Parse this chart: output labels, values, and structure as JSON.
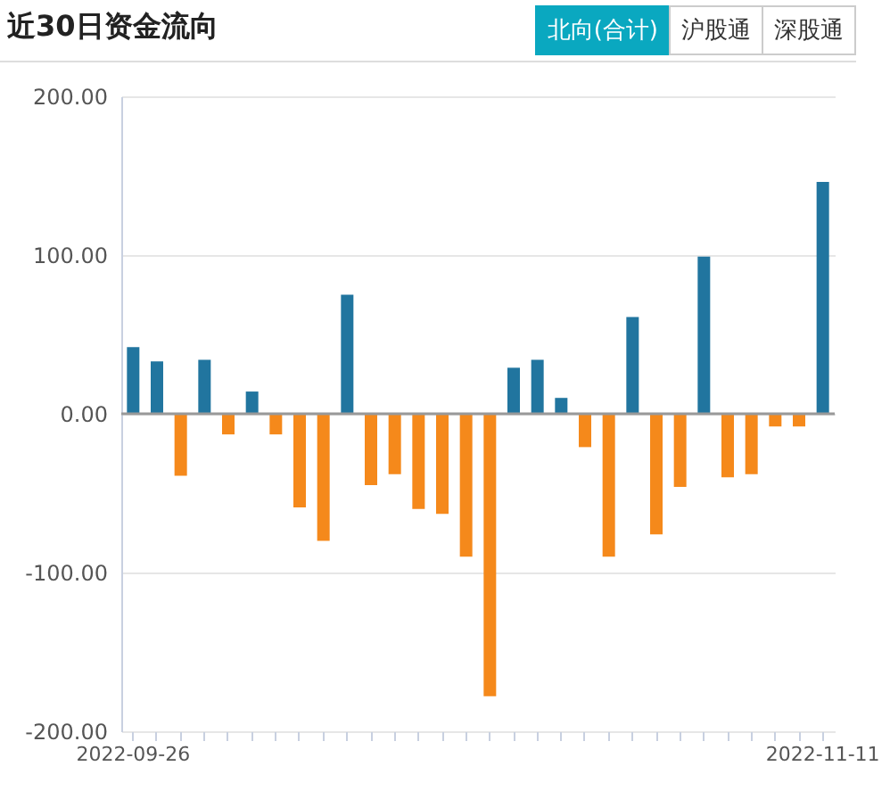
{
  "chart_data": {
    "type": "bar",
    "title": "近30日资金流向",
    "annotations": [
      "北向(合计)",
      "沪股通",
      "深股通"
    ],
    "categories": [
      "2022-09-26",
      null,
      null,
      null,
      null,
      null,
      null,
      null,
      null,
      null,
      null,
      null,
      null,
      null,
      null,
      null,
      null,
      null,
      null,
      null,
      null,
      null,
      null,
      null,
      null,
      null,
      null,
      null,
      null,
      "2022-11-11"
    ],
    "values": [
      42,
      33,
      -39,
      34,
      -13,
      14,
      -13,
      -59,
      -80,
      75,
      -45,
      -38,
      -60,
      -63,
      -90,
      -178,
      29,
      34,
      10,
      -21,
      -90,
      61,
      -76,
      -46,
      99,
      -40,
      -38,
      -8,
      -8,
      146
    ],
    "colors": [
      "#21759f",
      "#21759f",
      "#f5891b",
      "#21759f",
      "#f5891b",
      "#21759f",
      "#f5891b",
      "#f5891b",
      "#f5891b",
      "#21759f",
      "#f5891b",
      "#f5891b",
      "#f5891b",
      "#f5891b",
      "#f5891b",
      "#f5891b",
      "#21759f",
      "#21759f",
      "#21759f",
      "#f5891b",
      "#f5891b",
      "#21759f",
      "#f5891b",
      "#f5891b",
      "#21759f",
      "#f5891b",
      "#f5891b",
      "#f5891b",
      "#f5891b",
      "#21759f"
    ],
    "ylim": [
      -200,
      200
    ],
    "yticks": [
      {
        "value": -200,
        "label": "-200.00"
      },
      {
        "value": -100,
        "label": "-100.00"
      },
      {
        "value": 0,
        "label": "0.00"
      },
      {
        "value": 100,
        "label": "100.00"
      },
      {
        "value": 200,
        "label": "200.00"
      }
    ],
    "grid": "y",
    "ref_lines": [
      {
        "axis": "y",
        "value": 0,
        "color": "#999999"
      }
    ]
  }
}
